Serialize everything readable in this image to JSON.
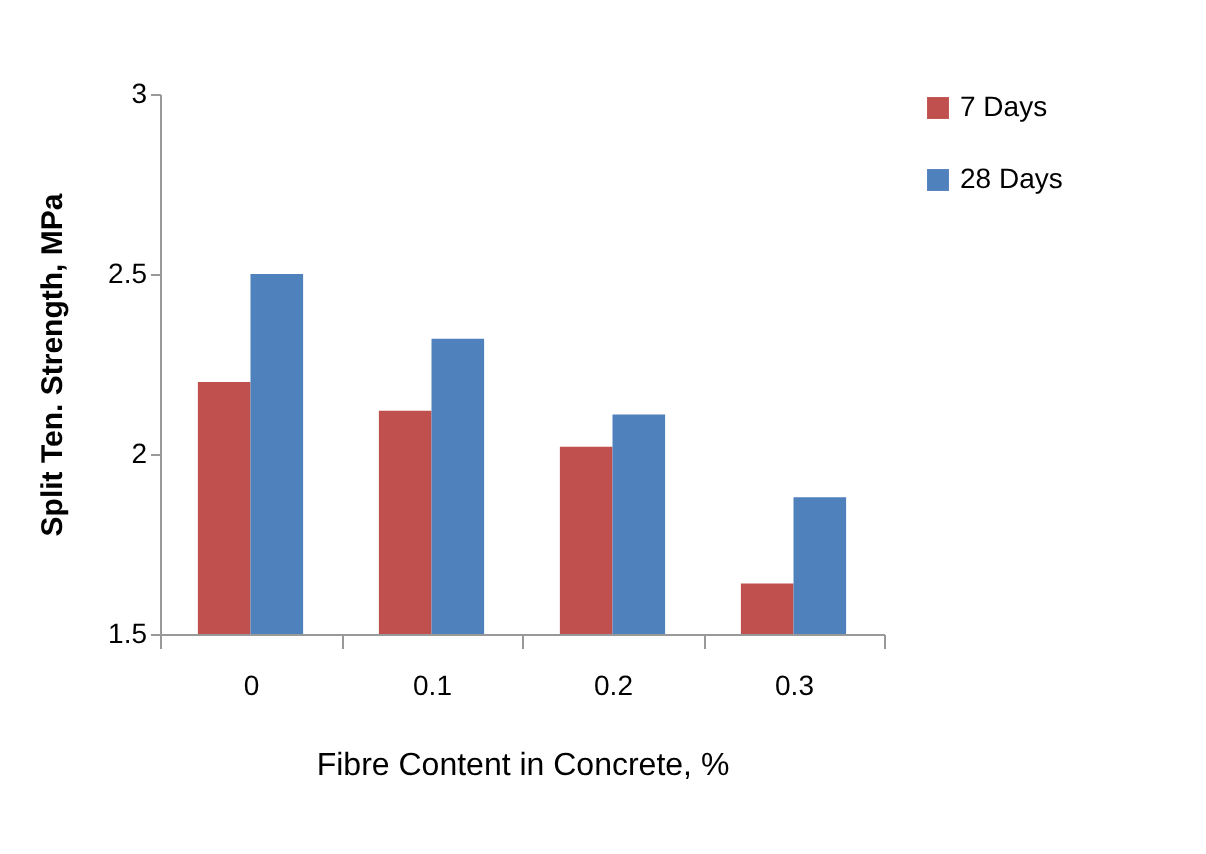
{
  "chart_data": {
    "type": "bar",
    "xlabel": "Fibre Content in Concrete, %",
    "ylabel": "Split Ten.  Strength, MPa",
    "categories": [
      "0",
      "0.1",
      "0.2",
      "0.3"
    ],
    "series": [
      {
        "name": "7 Days",
        "color": "#c0504d",
        "values": [
          2.2,
          2.12,
          2.02,
          1.64
        ]
      },
      {
        "name": "28 Days",
        "color": "#4f81bd",
        "values": [
          2.5,
          2.32,
          2.11,
          1.88
        ]
      }
    ],
    "ylim": [
      1.5,
      3
    ],
    "yticks": [
      1.5,
      2,
      2.5,
      3
    ],
    "grid": false,
    "legend": "right"
  }
}
